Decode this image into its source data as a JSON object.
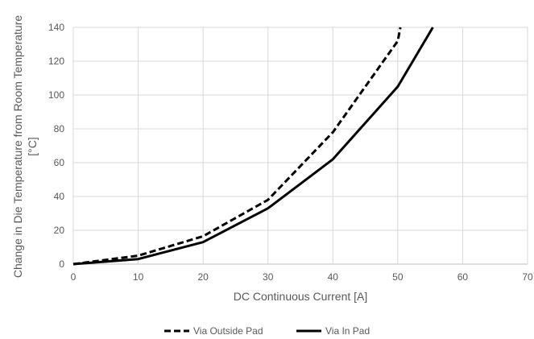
{
  "chart_data": {
    "type": "line",
    "xlabel": "DC Continuous Current [A]",
    "ylabel_lines": [
      "Change in Die Temperature from Room Temperature",
      "[°C]"
    ],
    "xlim": [
      0,
      70
    ],
    "ylim": [
      0,
      140
    ],
    "xticks": [
      0,
      10,
      20,
      30,
      40,
      50,
      60,
      70
    ],
    "yticks": [
      0,
      20,
      40,
      60,
      80,
      100,
      120,
      140
    ],
    "grid": true,
    "legend_position": "bottom-center",
    "series": [
      {
        "name": "Via Outside Pad",
        "style": "dashed",
        "color": "#000000",
        "x": [
          0,
          10,
          20,
          30,
          40,
          50,
          50.4
        ],
        "y": [
          0,
          5,
          16.5,
          38,
          78,
          132,
          140
        ]
      },
      {
        "name": "Via In Pad",
        "style": "solid",
        "color": "#000000",
        "x": [
          0,
          10,
          20,
          30,
          40,
          50,
          55.4
        ],
        "y": [
          0,
          3,
          13,
          33,
          62,
          105,
          140
        ]
      }
    ],
    "colors": {
      "grid": "#d9d9d9",
      "axis": "#bfbfbf",
      "text": "#595959"
    }
  }
}
